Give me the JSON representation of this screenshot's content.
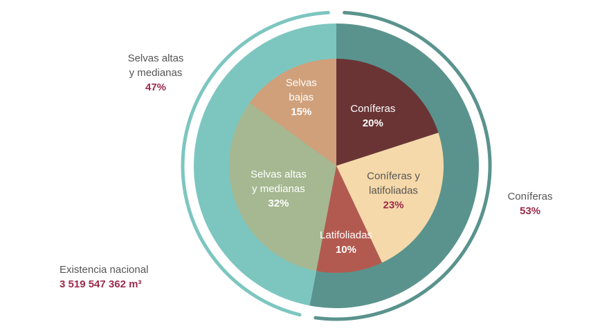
{
  "chart_data": [
    {
      "type": "pie",
      "ring": "outer",
      "slices": [
        {
          "label": "Coníferas",
          "value": 53,
          "value_label": "53%",
          "color": "#5a938d"
        },
        {
          "label": "Selvas altas y medianas",
          "label_lines": [
            "Selvas  altas",
            "y medianas"
          ],
          "value": 47,
          "value_label": "47%",
          "color": "#7dc6c0"
        }
      ]
    },
    {
      "type": "pie",
      "ring": "inner",
      "slices": [
        {
          "label": "Coníferas",
          "label_lines": [
            "Coníferas"
          ],
          "value": 20,
          "value_label": "20%",
          "color": "#6a3435",
          "text_color": "#ffffff",
          "pct_color": "#ffffff"
        },
        {
          "label": "Coníferas y latifoliadas",
          "label_lines": [
            "Coníferas y",
            "latifoliadas"
          ],
          "value": 23,
          "value_label": "23%",
          "color": "#f6d9aa",
          "text_color": "#555555",
          "pct_color": "#9c2a4a"
        },
        {
          "label": "Latifoliadas",
          "label_lines": [
            "Latifoliadas"
          ],
          "value": 10,
          "value_label": "10%",
          "color": "#b35a50",
          "text_color": "#ffffff",
          "pct_color": "#ffffff"
        },
        {
          "label": "Selvas altas y medianas",
          "label_lines": [
            "Selvas altas",
            "y medianas"
          ],
          "value": 32,
          "value_label": "32%",
          "color": "#a5b891",
          "text_color": "#ffffff",
          "pct_color": "#ffffff"
        },
        {
          "label": "Selvas bajas",
          "label_lines": [
            "Selvas",
            "bajas"
          ],
          "value": 15,
          "value_label": "15%",
          "color": "#d0a07a",
          "text_color": "#ffffff",
          "pct_color": "#ffffff"
        }
      ]
    }
  ],
  "total": {
    "label": "Existencia nacional",
    "value": "3 519 547 362 m³"
  },
  "colors": {
    "accent": "#9c2a4a",
    "ring_line": "#5a938d",
    "ring_line_light": "#7dc6c0"
  }
}
